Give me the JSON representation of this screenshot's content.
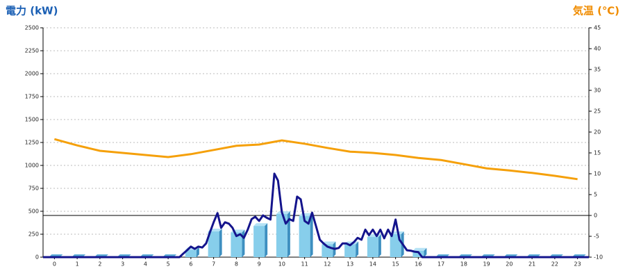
{
  "chart_data": {
    "type": "bar_line",
    "title": "電力 (kW)",
    "y2_title": "気温 (℃)",
    "categories": [
      "0",
      "1",
      "2",
      "3",
      "4",
      "5",
      "6",
      "7",
      "8",
      "9",
      "10",
      "11",
      "12",
      "13",
      "14",
      "15",
      "16",
      "17",
      "18",
      "19",
      "20",
      "21",
      "22",
      "23"
    ],
    "values": [
      0,
      0,
      0,
      0,
      0,
      0,
      80,
      280,
      270,
      340,
      470,
      450,
      140,
      140,
      220,
      250,
      70,
      0,
      0,
      0,
      0,
      0,
      0,
      0
    ],
    "color": "#87ceeb",
    "line": {
      "color": "#14148c",
      "x": [
        -0.5,
        5.5,
        5.67,
        5.83,
        6.0,
        6.17,
        6.33,
        6.5,
        6.67,
        6.83,
        7.0,
        7.17,
        7.33,
        7.5,
        7.67,
        7.83,
        8.0,
        8.17,
        8.33,
        8.5,
        8.67,
        8.83,
        9.0,
        9.17,
        9.33,
        9.5,
        9.67,
        9.83,
        10.0,
        10.17,
        10.33,
        10.5,
        10.67,
        10.83,
        11.0,
        11.17,
        11.33,
        11.5,
        11.67,
        11.83,
        12.0,
        12.17,
        12.33,
        12.5,
        12.67,
        12.83,
        13.0,
        13.17,
        13.33,
        13.5,
        13.67,
        13.83,
        14.0,
        14.17,
        14.33,
        14.5,
        14.67,
        14.83,
        15.0,
        15.17,
        15.33,
        15.5,
        15.67,
        15.83,
        16.0,
        16.17,
        23.5
      ],
      "values": [
        0,
        0,
        40,
        75,
        115,
        90,
        115,
        105,
        150,
        265,
        380,
        480,
        320,
        380,
        365,
        320,
        230,
        250,
        210,
        300,
        415,
        440,
        395,
        455,
        430,
        410,
        910,
        835,
        490,
        365,
        415,
        395,
        660,
        630,
        395,
        365,
        485,
        340,
        190,
        150,
        115,
        100,
        90,
        100,
        150,
        150,
        130,
        165,
        210,
        190,
        300,
        240,
        300,
        230,
        300,
        205,
        300,
        230,
        410,
        190,
        135,
        75,
        70,
        60,
        55,
        0,
        0
      ]
    },
    "temperature": {
      "color": "#f5a00a",
      "axis": "y2",
      "values": [
        18.3,
        16.8,
        15.5,
        15,
        14.5,
        14,
        14.7,
        15.7,
        16.7,
        17,
        18,
        17.2,
        16.2,
        15.3,
        15,
        14.5,
        13.8,
        13.3,
        12.3,
        11.3,
        10.8,
        10.2,
        9.5,
        8.7
      ]
    },
    "xlim": [
      -0.5,
      23.5
    ],
    "ylim": [
      0,
      2500
    ],
    "yticks": [
      0,
      250,
      500,
      750,
      1000,
      1250,
      1500,
      1750,
      2000,
      2250,
      2500
    ],
    "y2lim": [
      -10,
      45
    ],
    "y2ticks": [
      -10,
      -5,
      0,
      5,
      10,
      15,
      20,
      25,
      30,
      35,
      40,
      45
    ],
    "reference_line": {
      "axis": "y2",
      "value": 0
    },
    "grid": true
  }
}
